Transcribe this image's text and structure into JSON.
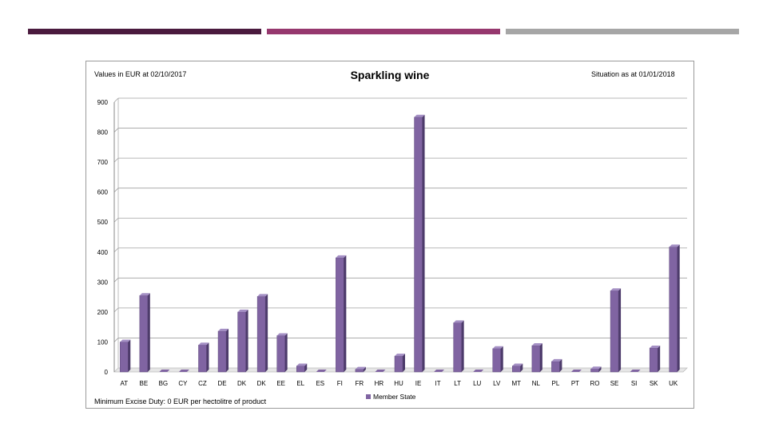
{
  "slide": {
    "deco_colors": [
      "#4a1a3e",
      "#96386e",
      "#a6a6a6"
    ]
  },
  "header": {
    "values_note": "Values in EUR at 02/10/2017",
    "situation_note": "Situation as at 01/01/2018"
  },
  "footer": {
    "min_duty_note": "Minimum Excise Duty: 0 EUR per hectolitre of product"
  },
  "chart_data": {
    "type": "bar",
    "title": "Sparkling wine",
    "xlabel": "",
    "ylabel": "",
    "ylim": [
      0,
      900
    ],
    "yticks": [
      0,
      100,
      200,
      300,
      400,
      500,
      600,
      700,
      800,
      900
    ],
    "grid": true,
    "legend_position": "bottom-center",
    "bar_color": "#8064a2",
    "categories": [
      "AT",
      "BE",
      "BG",
      "CY",
      "CZ",
      "DE",
      "DK",
      "DK",
      "EE",
      "EL",
      "ES",
      "FI",
      "FR",
      "HR",
      "HU",
      "IE",
      "IT",
      "LT",
      "LU",
      "LV",
      "MT",
      "NL",
      "PL",
      "PT",
      "RO",
      "SE",
      "SI",
      "SK",
      "UK"
    ],
    "series": [
      {
        "name": "Member State",
        "values": [
          100,
          255,
          0,
          0,
          90,
          136,
          200,
          252,
          121,
          20,
          0,
          381,
          9,
          0,
          53,
          850,
          0,
          164,
          0,
          78,
          20,
          88,
          35,
          0,
          10,
          271,
          0,
          80,
          417
        ]
      }
    ]
  }
}
